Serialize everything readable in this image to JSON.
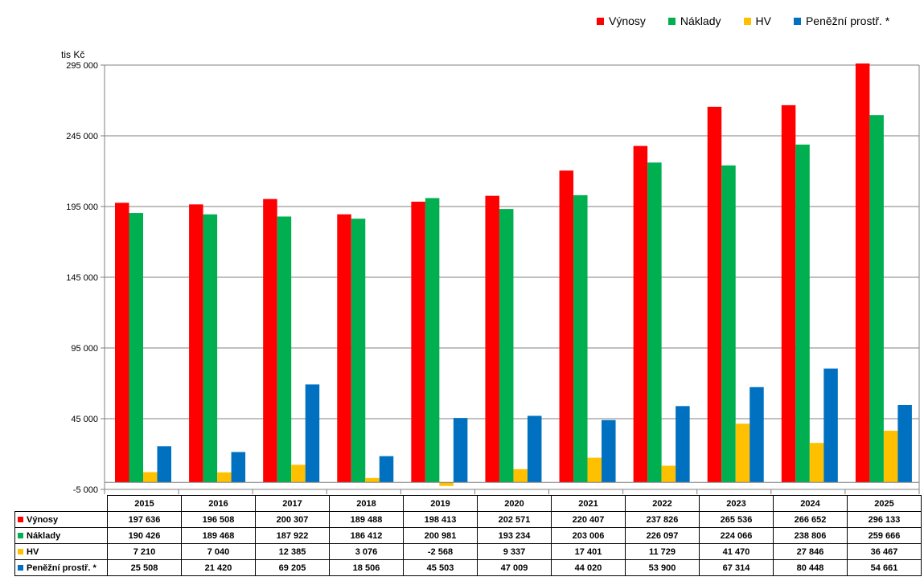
{
  "legend": [
    {
      "name": "Výnosy",
      "color": "#ff0000"
    },
    {
      "name": "Náklady",
      "color": "#00b050"
    },
    {
      "name": "HV",
      "color": "#ffc000"
    },
    {
      "name": "Peněžní prostř. *",
      "color": "#0070c0"
    }
  ],
  "chart_data": {
    "type": "bar",
    "unit_label": "tis Kč",
    "ylim": [
      -5000,
      305000
    ],
    "yticks": [
      {
        "v": -5000,
        "label": "-5 000"
      },
      {
        "v": 45000,
        "label": "45 000"
      },
      {
        "v": 95000,
        "label": "95 000"
      },
      {
        "v": 145000,
        "label": "145 000"
      },
      {
        "v": 195000,
        "label": "195 000"
      },
      {
        "v": 245000,
        "label": "245 000"
      },
      {
        "v": 295000,
        "label": "295 000"
      }
    ],
    "grid": true,
    "legend_position": "top-right",
    "categories": [
      "2015",
      "2016",
      "2017",
      "2018",
      "2019",
      "2020",
      "2021",
      "2022",
      "2023",
      "2024",
      "2025"
    ],
    "series": [
      {
        "name": "Výnosy",
        "color": "#ff0000",
        "values": [
          197636,
          196508,
          200307,
          189488,
          198413,
          202571,
          220407,
          237826,
          265536,
          266652,
          296133
        ],
        "labels": [
          "197 636",
          "196 508",
          "200 307",
          "189 488",
          "198 413",
          "202 571",
          "220 407",
          "237 826",
          "265 536",
          "266 652",
          "296 133"
        ]
      },
      {
        "name": "Náklady",
        "color": "#00b050",
        "values": [
          190426,
          189468,
          187922,
          186412,
          200981,
          193234,
          203006,
          226097,
          224066,
          238806,
          259666
        ],
        "labels": [
          "190 426",
          "189 468",
          "187 922",
          "186 412",
          "200 981",
          "193 234",
          "203 006",
          "226 097",
          "224 066",
          "238 806",
          "259 666"
        ]
      },
      {
        "name": "HV",
        "color": "#ffc000",
        "values": [
          7210,
          7040,
          12385,
          3076,
          -2568,
          9337,
          17401,
          11729,
          41470,
          27846,
          36467
        ],
        "labels": [
          "7 210",
          "7 040",
          "12 385",
          "3 076",
          "-2 568",
          "9 337",
          "17 401",
          "11 729",
          "41 470",
          "27 846",
          "36 467"
        ]
      },
      {
        "name": "Peněžní prostř. *",
        "color": "#0070c0",
        "values": [
          25508,
          21420,
          69205,
          18506,
          45503,
          47009,
          44020,
          53900,
          67314,
          80448,
          54661
        ],
        "labels": [
          "25 508",
          "21 420",
          "69 205",
          "18 506",
          "45 503",
          "47 009",
          "44 020",
          "53 900",
          "67 314",
          "80 448",
          "54 661"
        ]
      }
    ]
  }
}
